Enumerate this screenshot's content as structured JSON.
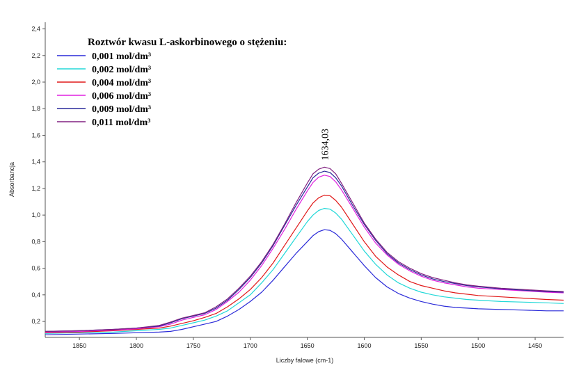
{
  "chart_data": {
    "type": "line",
    "title": "",
    "xlabel": "Liczby falowe (cm-1)",
    "ylabel": "Absorbancja",
    "xlim": [
      1880,
      1425
    ],
    "ylim": [
      0.08,
      2.45
    ],
    "x_reversed": true,
    "grid": false,
    "xticks": [
      {
        "value": 1850,
        "label": "1850"
      },
      {
        "value": 1800,
        "label": "1800"
      },
      {
        "value": 1750,
        "label": "1750"
      },
      {
        "value": 1700,
        "label": "1700"
      },
      {
        "value": 1650,
        "label": "1650"
      },
      {
        "value": 1600,
        "label": "1600"
      },
      {
        "value": 1550,
        "label": "1550"
      },
      {
        "value": 1500,
        "label": "1500"
      },
      {
        "value": 1450,
        "label": "1450"
      }
    ],
    "yticks": [
      {
        "value": 0.2,
        "label": "0,2"
      },
      {
        "value": 0.4,
        "label": "0,4"
      },
      {
        "value": 0.6,
        "label": "0,6"
      },
      {
        "value": 0.8,
        "label": "0,8"
      },
      {
        "value": 1.0,
        "label": "1,0"
      },
      {
        "value": 1.2,
        "label": "1,2"
      },
      {
        "value": 1.4,
        "label": "1,4"
      },
      {
        "value": 1.6,
        "label": "1,6"
      },
      {
        "value": 1.8,
        "label": "1,8"
      },
      {
        "value": 2.0,
        "label": "2,0"
      },
      {
        "value": 2.2,
        "label": "2,2"
      },
      {
        "value": 2.4,
        "label": "2,4"
      }
    ],
    "legend": {
      "title": "Roztwór kwasu L-askorbinowego o stężeniu:",
      "position": "top-left"
    },
    "annotation": {
      "text": "1634,03",
      "x": 1634.03,
      "y": 1.38
    },
    "x": [
      1880,
      1850,
      1820,
      1800,
      1780,
      1770,
      1760,
      1750,
      1740,
      1730,
      1720,
      1710,
      1700,
      1690,
      1680,
      1670,
      1660,
      1650,
      1645,
      1640,
      1635,
      1630,
      1625,
      1620,
      1610,
      1600,
      1590,
      1580,
      1570,
      1560,
      1550,
      1540,
      1530,
      1520,
      1510,
      1500,
      1480,
      1460,
      1440,
      1425
    ],
    "series": [
      {
        "name": "0,001 mol/dm³",
        "color": "#2a2ad8",
        "values": [
          0.1,
          0.105,
          0.11,
          0.115,
          0.12,
          0.125,
          0.14,
          0.16,
          0.18,
          0.2,
          0.24,
          0.29,
          0.35,
          0.42,
          0.51,
          0.61,
          0.71,
          0.8,
          0.845,
          0.875,
          0.89,
          0.885,
          0.86,
          0.82,
          0.72,
          0.62,
          0.53,
          0.46,
          0.41,
          0.375,
          0.35,
          0.33,
          0.315,
          0.305,
          0.3,
          0.295,
          0.29,
          0.285,
          0.28,
          0.28
        ]
      },
      {
        "name": "0,002 mol/dm³",
        "color": "#22d8d8",
        "values": [
          0.11,
          0.115,
          0.12,
          0.13,
          0.14,
          0.15,
          0.17,
          0.19,
          0.21,
          0.24,
          0.28,
          0.34,
          0.4,
          0.49,
          0.59,
          0.71,
          0.83,
          0.95,
          1.0,
          1.035,
          1.05,
          1.045,
          1.015,
          0.97,
          0.85,
          0.73,
          0.63,
          0.55,
          0.49,
          0.45,
          0.42,
          0.4,
          0.385,
          0.375,
          0.365,
          0.36,
          0.35,
          0.345,
          0.34,
          0.335
        ]
      },
      {
        "name": "0,004 mol/dm³",
        "color": "#e01818",
        "values": [
          0.115,
          0.12,
          0.13,
          0.14,
          0.15,
          0.165,
          0.185,
          0.205,
          0.23,
          0.26,
          0.31,
          0.37,
          0.44,
          0.53,
          0.64,
          0.77,
          0.9,
          1.03,
          1.09,
          1.13,
          1.15,
          1.145,
          1.11,
          1.06,
          0.93,
          0.8,
          0.69,
          0.61,
          0.55,
          0.5,
          0.47,
          0.45,
          0.43,
          0.415,
          0.405,
          0.395,
          0.385,
          0.375,
          0.365,
          0.36
        ]
      },
      {
        "name": "0,006 mol/dm³",
        "color": "#e020e0",
        "values": [
          0.12,
          0.125,
          0.135,
          0.145,
          0.16,
          0.18,
          0.21,
          0.23,
          0.25,
          0.29,
          0.35,
          0.42,
          0.51,
          0.62,
          0.75,
          0.89,
          1.04,
          1.18,
          1.245,
          1.285,
          1.3,
          1.29,
          1.25,
          1.19,
          1.05,
          0.91,
          0.79,
          0.7,
          0.63,
          0.58,
          0.54,
          0.51,
          0.49,
          0.475,
          0.46,
          0.45,
          0.44,
          0.43,
          0.42,
          0.415
        ]
      },
      {
        "name": "0,009 mol/dm³",
        "color": "#2a2a9a",
        "values": [
          0.125,
          0.13,
          0.14,
          0.15,
          0.165,
          0.19,
          0.22,
          0.24,
          0.26,
          0.3,
          0.36,
          0.44,
          0.53,
          0.64,
          0.77,
          0.92,
          1.07,
          1.21,
          1.28,
          1.315,
          1.33,
          1.32,
          1.28,
          1.22,
          1.07,
          0.93,
          0.81,
          0.71,
          0.64,
          0.59,
          0.55,
          0.52,
          0.5,
          0.485,
          0.47,
          0.46,
          0.445,
          0.435,
          0.425,
          0.42
        ]
      },
      {
        "name": "0,011 mol/dm³",
        "color": "#802080",
        "values": [
          0.125,
          0.13,
          0.14,
          0.15,
          0.17,
          0.195,
          0.225,
          0.245,
          0.265,
          0.31,
          0.37,
          0.45,
          0.54,
          0.65,
          0.78,
          0.93,
          1.09,
          1.24,
          1.31,
          1.345,
          1.36,
          1.35,
          1.31,
          1.24,
          1.09,
          0.94,
          0.82,
          0.72,
          0.65,
          0.6,
          0.56,
          0.53,
          0.51,
          0.49,
          0.475,
          0.465,
          0.45,
          0.44,
          0.43,
          0.425
        ]
      }
    ]
  }
}
